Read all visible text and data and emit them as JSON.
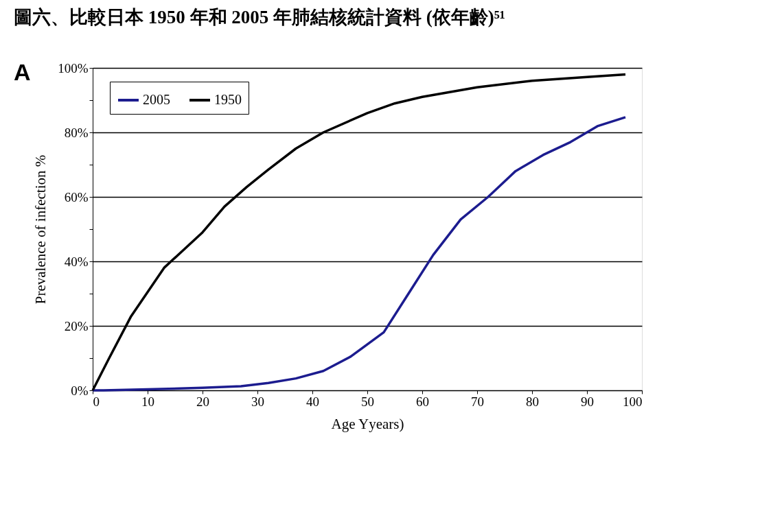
{
  "chart_data": {
    "type": "line",
    "title": "圖六、比較日本 1950 年和 2005 年肺結核統計資料 (依年齡)⁵¹",
    "xlabel": "Age Yyears)",
    "ylabel": "Prevalence of infection %",
    "annotations": [
      "A"
    ],
    "series": [
      {
        "name": "2005",
        "color": "#1c1c8f",
        "x": [
          0,
          2,
          10,
          20,
          27,
          32,
          37,
          42,
          47,
          53,
          57.5,
          62,
          67,
          72,
          77,
          82,
          87,
          92,
          97
        ],
        "values": [
          0,
          0,
          0.3,
          0.8,
          1.3,
          2.3,
          3.7,
          6,
          10.5,
          18,
          30,
          42,
          53,
          60,
          68,
          73,
          77,
          82,
          84.7
        ]
      },
      {
        "name": "1950",
        "color": "#000000",
        "x": [
          0,
          3,
          7,
          13,
          20,
          24,
          28,
          32,
          37,
          42,
          50,
          55,
          60,
          70,
          80,
          90,
          97
        ],
        "values": [
          0,
          10,
          23,
          38,
          49,
          57,
          63,
          68.5,
          75,
          80,
          86,
          89,
          91,
          94,
          96,
          97.2,
          98
        ]
      }
    ],
    "xlim": [
      0,
      100
    ],
    "xticks": [
      0,
      10,
      20,
      30,
      40,
      50,
      60,
      70,
      80,
      90,
      100
    ],
    "ylim": [
      0,
      100
    ],
    "yticks": [
      {
        "value": 0,
        "label": "0%"
      },
      {
        "value": 10,
        "label": null
      },
      {
        "value": 20,
        "label": "20%"
      },
      {
        "value": 30,
        "label": null
      },
      {
        "value": 40,
        "label": "40%"
      },
      {
        "value": 50,
        "label": null
      },
      {
        "value": 60,
        "label": "60%"
      },
      {
        "value": 70,
        "label": null
      },
      {
        "value": 80,
        "label": "80%"
      },
      {
        "value": 90,
        "label": null
      },
      {
        "value": 100,
        "label": "100%"
      }
    ],
    "grid": "y",
    "legend": "top left",
    "marker": "none",
    "line_style": "solid"
  }
}
